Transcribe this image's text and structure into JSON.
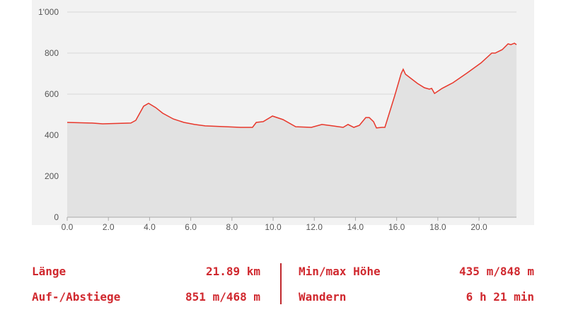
{
  "chart_data": {
    "type": "area",
    "x": [
      0,
      1.2,
      1.72,
      3.09,
      3.33,
      3.71,
      3.95,
      4.3,
      4.64,
      5.15,
      5.67,
      6.19,
      6.7,
      7.73,
      8.42,
      9.0,
      9.18,
      9.52,
      9.97,
      10.48,
      11.1,
      11.86,
      12.37,
      12.89,
      13.4,
      13.64,
      13.92,
      14.19,
      14.5,
      14.67,
      14.88,
      15.02,
      15.29,
      15.43,
      15.57,
      15.91,
      16.22,
      16.32,
      16.43,
      17.01,
      17.35,
      17.59,
      17.7,
      17.84,
      18.21,
      18.73,
      19.42,
      20.1,
      20.62,
      20.79,
      21.13,
      21.41,
      21.55,
      21.72,
      21.82
    ],
    "values": [
      462,
      459,
      455,
      459,
      472,
      541,
      555,
      534,
      507,
      479,
      462,
      452,
      445,
      441,
      438,
      438,
      462,
      466,
      493,
      476,
      441,
      438,
      452,
      445,
      438,
      452,
      438,
      448,
      486,
      486,
      466,
      435,
      438,
      438,
      483,
      593,
      700,
      721,
      697,
      652,
      631,
      624,
      628,
      603,
      628,
      655,
      703,
      752,
      800,
      800,
      817,
      845,
      841,
      848,
      841
    ],
    "color": "#e8372b",
    "fill_color": "#e2e2e2",
    "xlim": [
      0,
      21.82
    ],
    "ylim": [
      0,
      1000
    ],
    "xticks": [
      {
        "value": 0,
        "label": "0.0"
      },
      {
        "value": 2,
        "label": "2.0"
      },
      {
        "value": 4,
        "label": "4.0"
      },
      {
        "value": 6,
        "label": "6.0"
      },
      {
        "value": 8,
        "label": "8.0"
      },
      {
        "value": 10,
        "label": "10.0"
      },
      {
        "value": 12,
        "label": "12.0"
      },
      {
        "value": 14,
        "label": "14.0"
      },
      {
        "value": 16,
        "label": "16.0"
      },
      {
        "value": 18,
        "label": "18.0"
      },
      {
        "value": 20,
        "label": "20.0"
      }
    ],
    "yticks": [
      0,
      200,
      400,
      600,
      800,
      {
        "value": 1000,
        "label": "1'000"
      }
    ],
    "grid": true
  },
  "stats": {
    "rows": [
      [
        {
          "label": "Länge",
          "value": "21.89 km"
        },
        {
          "label": "Min/max Höhe",
          "value": "435 m/848 m"
        }
      ],
      [
        {
          "label": "Auf-/Abstiege",
          "value": "851 m/468 m"
        },
        {
          "label": "Wandern",
          "value": "6 h 21 min"
        }
      ]
    ]
  }
}
